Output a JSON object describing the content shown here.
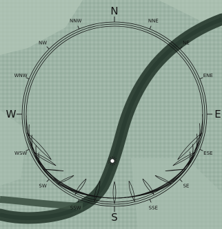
{
  "compass": {
    "cardinals": [
      {
        "key": "n",
        "label": "N",
        "deg": 0
      },
      {
        "key": "e",
        "label": "E",
        "deg": 90
      },
      {
        "key": "s",
        "label": "S",
        "deg": 180
      },
      {
        "key": "w",
        "label": "W",
        "deg": 270
      }
    ],
    "intercardinals": [
      {
        "key": "nne",
        "label": "NNE",
        "deg": 22.5
      },
      {
        "key": "ne",
        "label": "NE",
        "deg": 45
      },
      {
        "key": "ene",
        "label": "ENE",
        "deg": 67.5
      },
      {
        "key": "ese",
        "label": "ESE",
        "deg": 112.5
      },
      {
        "key": "se",
        "label": "SE",
        "deg": 135
      },
      {
        "key": "sse",
        "label": "SSE",
        "deg": 157.5
      },
      {
        "key": "ssw",
        "label": "SSW",
        "deg": 202.5
      },
      {
        "key": "sw",
        "label": "SW",
        "deg": 225
      },
      {
        "key": "wsw",
        "label": "WSW",
        "deg": 247.5
      },
      {
        "key": "wnw",
        "label": "WNW",
        "deg": 292.5
      },
      {
        "key": "nw",
        "label": "NW",
        "deg": 315
      },
      {
        "key": "nnw",
        "label": "NNW",
        "deg": 337.5
      }
    ]
  },
  "colors": {
    "terrain": "#9db4a6",
    "terrain_light": "#b4c8bb",
    "road": "#33463a",
    "road_dark": "#22332a",
    "sunpath_lines": "#111111"
  },
  "sun_marker": {
    "icon": "sun-icon"
  }
}
